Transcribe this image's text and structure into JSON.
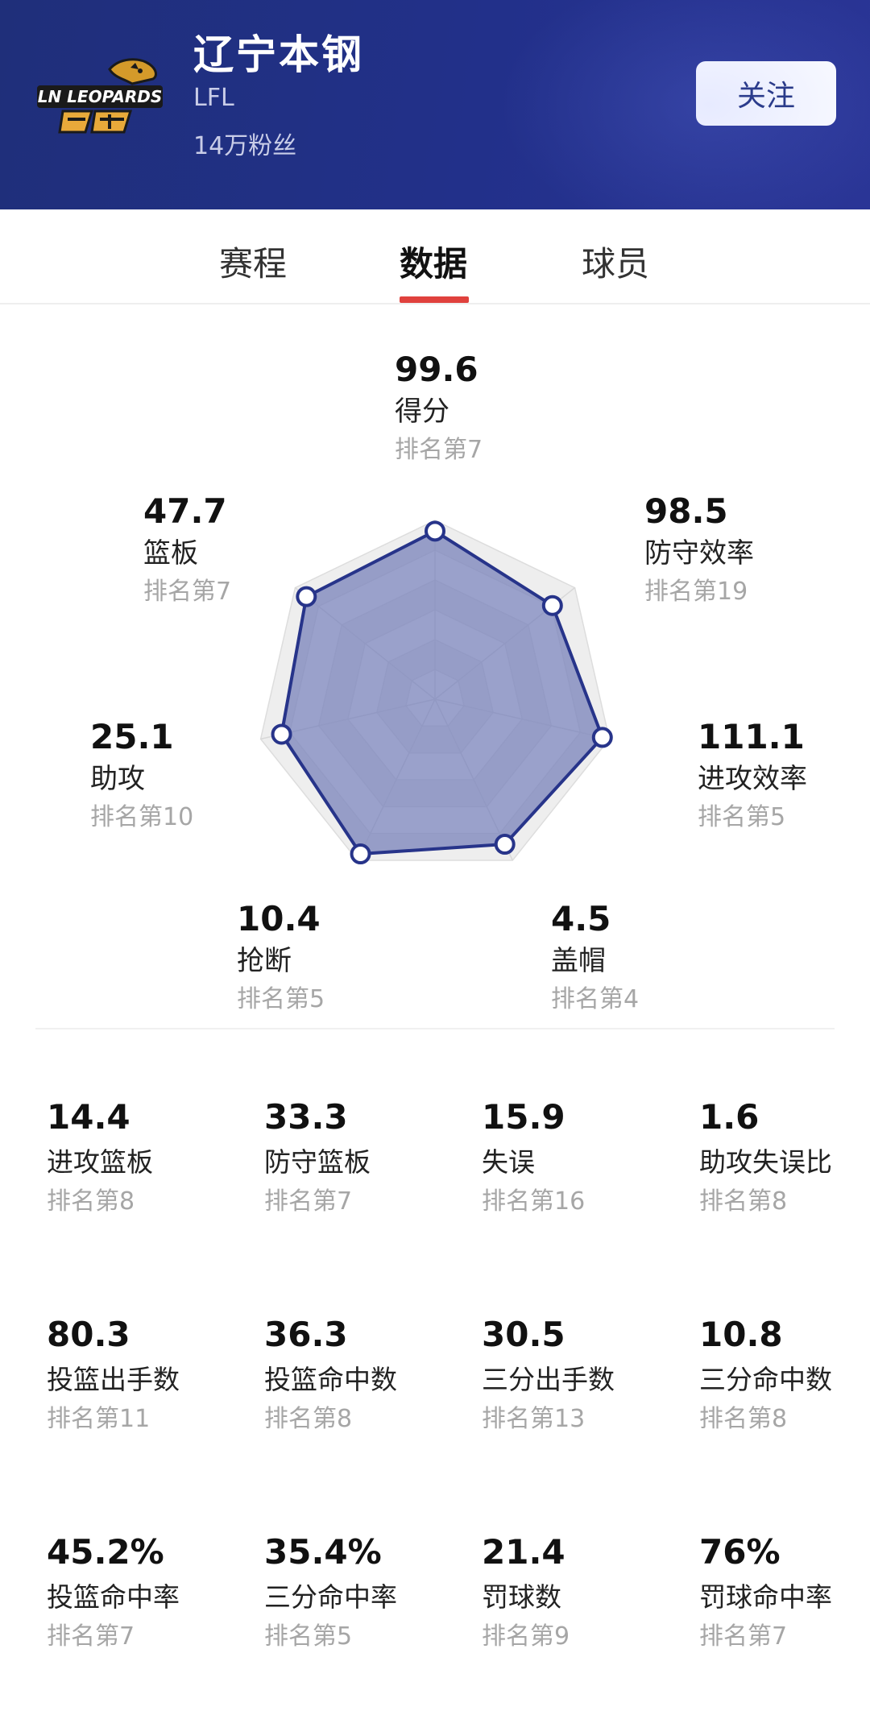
{
  "header": {
    "logo_text": "LN LEOPARDS",
    "team_name": "辽宁本钢",
    "league": "LFL",
    "fans": "14万粉丝",
    "follow_label": "关注"
  },
  "tabs": [
    {
      "label": "赛程",
      "active": false
    },
    {
      "label": "数据",
      "active": true
    },
    {
      "label": "球员",
      "active": false
    }
  ],
  "colors": {
    "header_bg": "#22308a",
    "tab_indicator": "#e0413d",
    "radar_fill": "#7d86bd",
    "radar_stroke": "#27348a",
    "rank_text": "#a6a6a6"
  },
  "radar": {
    "grid_levels": 6,
    "axes": [
      {
        "value": "99.6",
        "name": "得分",
        "rank": "排名第7",
        "level": 0.94
      },
      {
        "value": "98.5",
        "name": "防守效率",
        "rank": "排名第19",
        "level": 0.84
      },
      {
        "value": "111.1",
        "name": "进攻效率",
        "rank": "排名第5",
        "level": 0.96
      },
      {
        "value": "4.5",
        "name": "盖帽",
        "rank": "排名第4",
        "level": 0.9
      },
      {
        "value": "10.4",
        "name": "抢断",
        "rank": "排名第5",
        "level": 0.96
      },
      {
        "value": "25.1",
        "name": "助攻",
        "rank": "排名第10",
        "level": 0.88
      },
      {
        "value": "47.7",
        "name": "篮板",
        "rank": "排名第7",
        "level": 0.92
      }
    ]
  },
  "stats": [
    {
      "value": "14.4",
      "name": "进攻篮板",
      "rank": "排名第8"
    },
    {
      "value": "33.3",
      "name": "防守篮板",
      "rank": "排名第7"
    },
    {
      "value": "15.9",
      "name": "失误",
      "rank": "排名第16"
    },
    {
      "value": "1.6",
      "name": "助攻失误比",
      "rank": "排名第8"
    },
    {
      "value": "80.3",
      "name": "投篮出手数",
      "rank": "排名第11"
    },
    {
      "value": "36.3",
      "name": "投篮命中数",
      "rank": "排名第8"
    },
    {
      "value": "30.5",
      "name": "三分出手数",
      "rank": "排名第13"
    },
    {
      "value": "10.8",
      "name": "三分命中数",
      "rank": "排名第8"
    },
    {
      "value": "45.2%",
      "name": "投篮命中率",
      "rank": "排名第7"
    },
    {
      "value": "35.4%",
      "name": "三分命中率",
      "rank": "排名第5"
    },
    {
      "value": "21.4",
      "name": "罚球数",
      "rank": "排名第9"
    },
    {
      "value": "76%",
      "name": "罚球命中率",
      "rank": "排名第7"
    }
  ]
}
